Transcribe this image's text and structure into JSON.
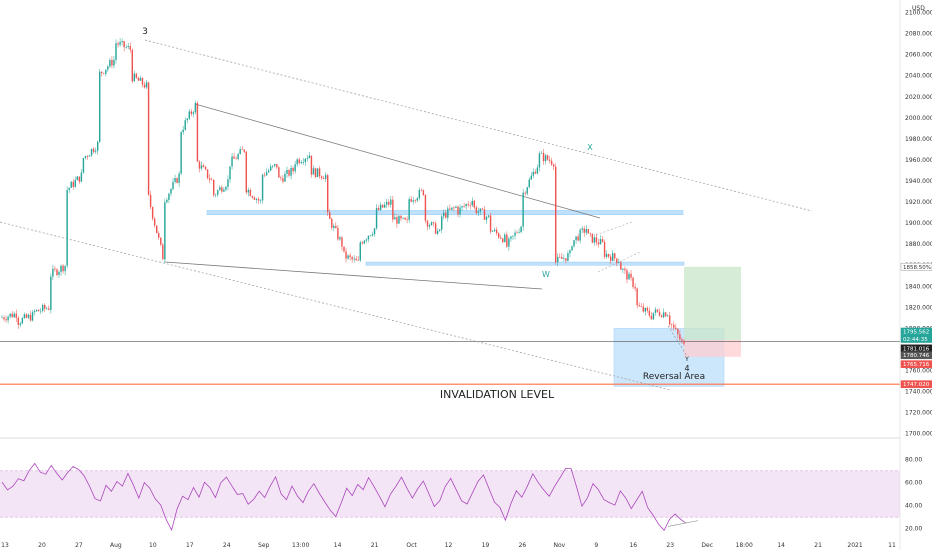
{
  "chart_data": {
    "type": "candlestick",
    "currency_label": "USD",
    "price_axis": {
      "ticks": [
        1700,
        1720,
        1740,
        1760,
        1780,
        1800,
        1820,
        1840,
        1860,
        1880,
        1900,
        1920,
        1940,
        1960,
        1980,
        2000,
        2020,
        2040,
        2060,
        2080,
        2100
      ],
      "tick_labels": [
        "1700.000",
        "1720.000",
        "1740.000",
        "1760.000",
        "1780.000",
        "1800.000",
        "1820.000",
        "1840.000",
        "1860.000",
        "1880.000",
        "1900.000",
        "1920.000",
        "1940.000",
        "1960.000",
        "1980.000",
        "2000.000",
        "2020.000",
        "2040.000",
        "2060.000",
        "2080.000",
        "2100.000"
      ],
      "range": [
        1694,
        2110
      ]
    },
    "time_axis_labels": [
      "13",
      "20",
      "27",
      "Aug",
      "10",
      "17",
      "24",
      "Sep",
      "13:00",
      "14",
      "21",
      "Oct",
      "12",
      "19",
      "26",
      "Nov",
      "9",
      "16",
      "23",
      "Dec",
      "18:00",
      "14",
      "21",
      "2021",
      "11"
    ],
    "price_path": [
      [
        1810,
        1814
      ],
      [
        1806,
        1812
      ],
      [
        1815,
        1820
      ],
      [
        1850,
        1860
      ],
      [
        1930,
        1945
      ],
      [
        1960,
        1975
      ],
      [
        2040,
        2055
      ],
      [
        2072,
        2065
      ],
      [
        2040,
        2030
      ],
      [
        1932,
        1868
      ],
      [
        1920,
        1945
      ],
      [
        1985,
        2012
      ],
      [
        1960,
        1940
      ],
      [
        1925,
        1940
      ],
      [
        1955,
        1970
      ],
      [
        1935,
        1920
      ],
      [
        1945,
        1955
      ],
      [
        1940,
        1950
      ],
      [
        1958,
        1965
      ],
      [
        1950,
        1945
      ],
      [
        1910,
        1880
      ],
      [
        1870,
        1862
      ],
      [
        1880,
        1895
      ],
      [
        1910,
        1920
      ],
      [
        1905,
        1900
      ],
      [
        1922,
        1930
      ],
      [
        1905,
        1890
      ],
      [
        1905,
        1915
      ],
      [
        1910,
        1922
      ],
      [
        1915,
        1905
      ],
      [
        1895,
        1885
      ],
      [
        1875,
        1898
      ],
      [
        1925,
        1955
      ],
      [
        1965,
        1958
      ],
      [
        1862,
        1870
      ],
      [
        1880,
        1895
      ],
      [
        1888,
        1880
      ],
      [
        1872,
        1865
      ],
      [
        1860,
        1840
      ],
      [
        1822,
        1812
      ],
      [
        1815,
        1815
      ],
      [
        1810,
        1783
      ]
    ],
    "rsi": {
      "band": [
        30,
        70
      ],
      "ticks": [
        20,
        40,
        60,
        80
      ],
      "tick_labels": [
        "20.00",
        "40.00",
        "60.00",
        "80.00"
      ],
      "range": [
        12,
        88
      ],
      "values": [
        62,
        55,
        58,
        65,
        60,
        72,
        78,
        70,
        66,
        74,
        68,
        62,
        70,
        75,
        70,
        64,
        56,
        48,
        44,
        58,
        52,
        62,
        56,
        66,
        58,
        48,
        60,
        54,
        44,
        40,
        28,
        18,
        36,
        50,
        44,
        56,
        46,
        60,
        54,
        48,
        60,
        64,
        56,
        48,
        52,
        40,
        46,
        52,
        46,
        58,
        64,
        52,
        44,
        56,
        50,
        42,
        54,
        60,
        52,
        44,
        34,
        30,
        42,
        54,
        48,
        58,
        52,
        64,
        56,
        46,
        38,
        48,
        58,
        64,
        56,
        48,
        54,
        60,
        52,
        40,
        46,
        56,
        62,
        54,
        46,
        40,
        52,
        60,
        66,
        56,
        44,
        38,
        28,
        40,
        54,
        48,
        58,
        66,
        60,
        54,
        50,
        58,
        66,
        74,
        70,
        56,
        40,
        48,
        60,
        54,
        46,
        42,
        40,
        52,
        48,
        38,
        44,
        54,
        40,
        30,
        22,
        20,
        28,
        34,
        30,
        26
      ]
    },
    "annotations": {
      "wave_3": "3",
      "wave_x": "X",
      "wave_w": "W",
      "wave_y": "Y",
      "wave_4": "4",
      "reversal_area": "Reversal Area",
      "invalidation": "INVALIDATION LEVEL"
    },
    "levels": {
      "upper_zone": [
        1908,
        1912
      ],
      "lower_zone": [
        1860,
        1863
      ],
      "reversal_zone": [
        1745,
        1800
      ],
      "invalidation": 1747.02,
      "horizontal": 1787.5,
      "long_target": 1858.5,
      "long_entry": 1789,
      "long_stop": 1773
    },
    "price_badges": [
      {
        "label": "1858.50%",
        "value": 1858.5,
        "color": "#ffffff",
        "fg": "#333"
      },
      {
        "label": "1795.562",
        "value": 1797,
        "color": "#26a69a",
        "fg": "#ffffff"
      },
      {
        "label": "02:44:35",
        "value": 1790,
        "color": "#26a69a",
        "fg": "#ffffff"
      },
      {
        "label": "1781.016",
        "value": 1781,
        "color": "#222222",
        "fg": "#ffffff"
      },
      {
        "label": "1780.746",
        "value": 1774.5,
        "color": "#555555",
        "fg": "#ffffff"
      },
      {
        "label": "1765.716",
        "value": 1766,
        "color": "#ef5350",
        "fg": "#ffffff"
      },
      {
        "label": "1747.020",
        "value": 1747,
        "color": "#ef5350",
        "fg": "#ffffff"
      }
    ],
    "colors": {
      "up": "#26a69a",
      "down": "#ef5350",
      "zone_blue": "#bbdefb",
      "zone_blue_stroke": "#90caf9",
      "rsi_band": "#f3e5f5",
      "rsi_line": "#ab47bc",
      "invalidation": "#ff7043",
      "long_green": "#c8e6c9",
      "short_red": "#ffcdd2"
    }
  }
}
